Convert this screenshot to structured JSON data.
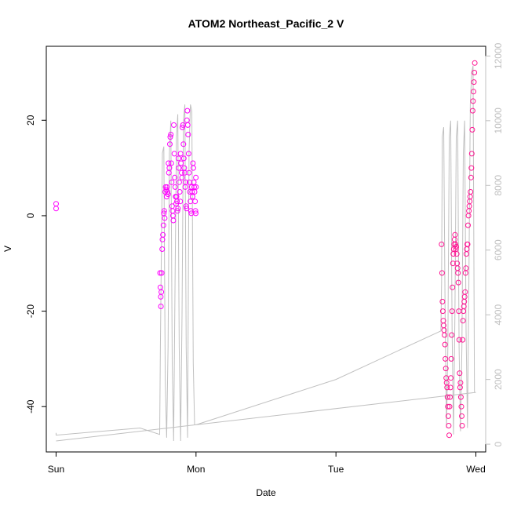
{
  "chart_data": {
    "type": "scatter",
    "title": "ATOM2 Northeast_Pacific_2 V",
    "xlabel": "Date",
    "ylabel": "V",
    "x_ticks": [
      "Sun",
      "Mon",
      "Tue",
      "Wed"
    ],
    "x_range_days": [
      -0.07,
      3.07
    ],
    "ylim": [
      -49.5,
      35.5
    ],
    "y_ticks": [
      -40,
      -20,
      0,
      20
    ],
    "y2lim": [
      -240,
      12300
    ],
    "y2_ticks": [
      0,
      2000,
      4000,
      6000,
      8000,
      10000,
      12000
    ],
    "grid": false,
    "legend": "none",
    "colors": {
      "points_early": "#ff00ff",
      "points_late": "#ff1493",
      "secondary_line": "#c0c0c0",
      "frame": "#000000",
      "secondary_axis": "#c0c0c0"
    },
    "series": [
      {
        "axis": "left",
        "kind": "points",
        "color_role": "points",
        "x": [
          0.0,
          0.0,
          0.743,
          0.745,
          0.748,
          0.749,
          0.752,
          0.755,
          0.758,
          0.76,
          0.763,
          0.767,
          0.77,
          0.773,
          0.776,
          0.78,
          0.783,
          0.787,
          0.79,
          0.793,
          0.797,
          0.8,
          0.803,
          0.806,
          0.81,
          0.813,
          0.816,
          0.82,
          0.823,
          0.826,
          0.829,
          0.832,
          0.835,
          0.838,
          0.841,
          0.845,
          0.848,
          0.851,
          0.854,
          0.858,
          0.861,
          0.864,
          0.867,
          0.871,
          0.874,
          0.877,
          0.88,
          0.884,
          0.887,
          0.89,
          0.893,
          0.897,
          0.9,
          0.903,
          0.907,
          0.91,
          0.913,
          0.916,
          0.92,
          0.923,
          0.926,
          0.929,
          0.932,
          0.935,
          0.938,
          0.941,
          0.944,
          0.947,
          0.95,
          0.953,
          0.956,
          0.96,
          0.963,
          0.966,
          0.969,
          0.972,
          0.975,
          0.978,
          0.981,
          0.984,
          0.987,
          0.99,
          0.993,
          0.996,
          0.998,
          0.999,
          1.0,
          2.755,
          2.758,
          2.761,
          2.764,
          2.767,
          2.77,
          2.773,
          2.776,
          2.779,
          2.782,
          2.785,
          2.788,
          2.791,
          2.794,
          2.797,
          2.8,
          2.803,
          2.806,
          2.809,
          2.812,
          2.815,
          2.818,
          2.821,
          2.824,
          2.827,
          2.83,
          2.833,
          2.836,
          2.839,
          2.842,
          2.845,
          2.848,
          2.851,
          2.854,
          2.857,
          2.86,
          2.863,
          2.866,
          2.869,
          2.872,
          2.875,
          2.878,
          2.881,
          2.884,
          2.887,
          2.89,
          2.893,
          2.896,
          2.899,
          2.902,
          2.905,
          2.908,
          2.911,
          2.914,
          2.917,
          2.92,
          2.923,
          2.926,
          2.929,
          2.932,
          2.935,
          2.938,
          2.941,
          2.944,
          2.947,
          2.95,
          2.953,
          2.956,
          2.959,
          2.962,
          2.965,
          2.968,
          2.971,
          2.974,
          2.977,
          2.98,
          2.983,
          2.986,
          2.989,
          2.992
        ],
        "y": [
          2.5,
          1.5,
          -12,
          -15,
          -17,
          -19,
          -16,
          -12,
          -7,
          -5,
          -4,
          -2,
          0.5,
          1,
          -0.5,
          5,
          6,
          5.5,
          4,
          6,
          5,
          4.5,
          11,
          9,
          10,
          15,
          16.5,
          17,
          11,
          7,
          2,
          1,
          0,
          -1,
          19,
          13,
          8,
          6,
          4,
          2.5,
          4,
          3,
          1,
          1.5,
          12,
          10,
          7,
          5,
          3,
          13,
          11,
          9,
          8,
          18.5,
          19,
          15,
          12,
          10,
          9,
          6,
          7,
          2,
          1.5,
          20,
          22,
          19,
          17,
          13,
          9,
          7,
          5,
          3,
          1,
          0.5,
          6,
          5,
          4,
          11,
          10,
          7,
          6,
          5,
          3,
          1,
          0.5,
          8,
          6,
          -6,
          -12,
          -18,
          -20,
          -22,
          -23,
          -24,
          -25,
          -27,
          -30,
          -32,
          -34,
          -35,
          -36,
          -38,
          -40,
          -42,
          -44,
          -46,
          -40,
          -38,
          -36,
          -34,
          -30,
          -25,
          -20,
          -15,
          -10,
          -8,
          -7,
          -6,
          -5,
          -4,
          -6,
          -7,
          -6.5,
          -8,
          -10,
          -11,
          -12,
          -14,
          -20,
          -26,
          -33,
          -36,
          -35,
          -38,
          -40,
          -42,
          -44,
          -26,
          -22,
          -20,
          -19,
          -18,
          -17,
          -16,
          -12,
          -11,
          -8,
          -7,
          -6,
          -6,
          -2,
          0,
          1,
          2,
          3,
          4,
          5,
          8,
          10,
          13,
          18,
          22,
          24,
          26,
          28,
          30,
          32
        ]
      },
      {
        "axis": "right",
        "kind": "line",
        "color_role": "secondary_line",
        "x": [
          0.0,
          0.0,
          0.6,
          0.74,
          0.745,
          0.76,
          0.77,
          0.78,
          0.79,
          0.8,
          0.81,
          0.82,
          0.83,
          0.84,
          0.85,
          0.86,
          0.87,
          0.88,
          0.89,
          0.9,
          0.91,
          0.92,
          0.93,
          0.94,
          0.95,
          0.96,
          0.97,
          0.98,
          0.99,
          1.0,
          1.0,
          2.0,
          2.75,
          2.755,
          2.76,
          2.77,
          2.78,
          2.79,
          2.8,
          2.81,
          2.82,
          2.83,
          2.84,
          2.85,
          2.86,
          2.87,
          2.88,
          2.89,
          2.9,
          2.91,
          2.92,
          2.93,
          2.94,
          2.95,
          2.96,
          2.97,
          2.98,
          2.99,
          3.0,
          3.0,
          0.0
        ],
        "y": [
          350,
          280,
          500,
          300,
          3000,
          9000,
          9200,
          2000,
          200,
          3000,
          9000,
          10000,
          2500,
          100,
          5000,
          9500,
          10200,
          3000,
          100,
          4000,
          10000,
          10500,
          3000,
          200,
          9000,
          10500,
          10300,
          2500,
          600,
          600,
          600,
          2000,
          3500,
          5000,
          9500,
          9800,
          4000,
          500,
          3000,
          9500,
          10000,
          3500,
          300,
          4000,
          9500,
          10000,
          3000,
          400,
          3000,
          9000,
          10000,
          3500,
          500,
          5000,
          10500,
          11500,
          11700,
          1600,
          1600,
          1600,
          100
        ]
      }
    ]
  }
}
